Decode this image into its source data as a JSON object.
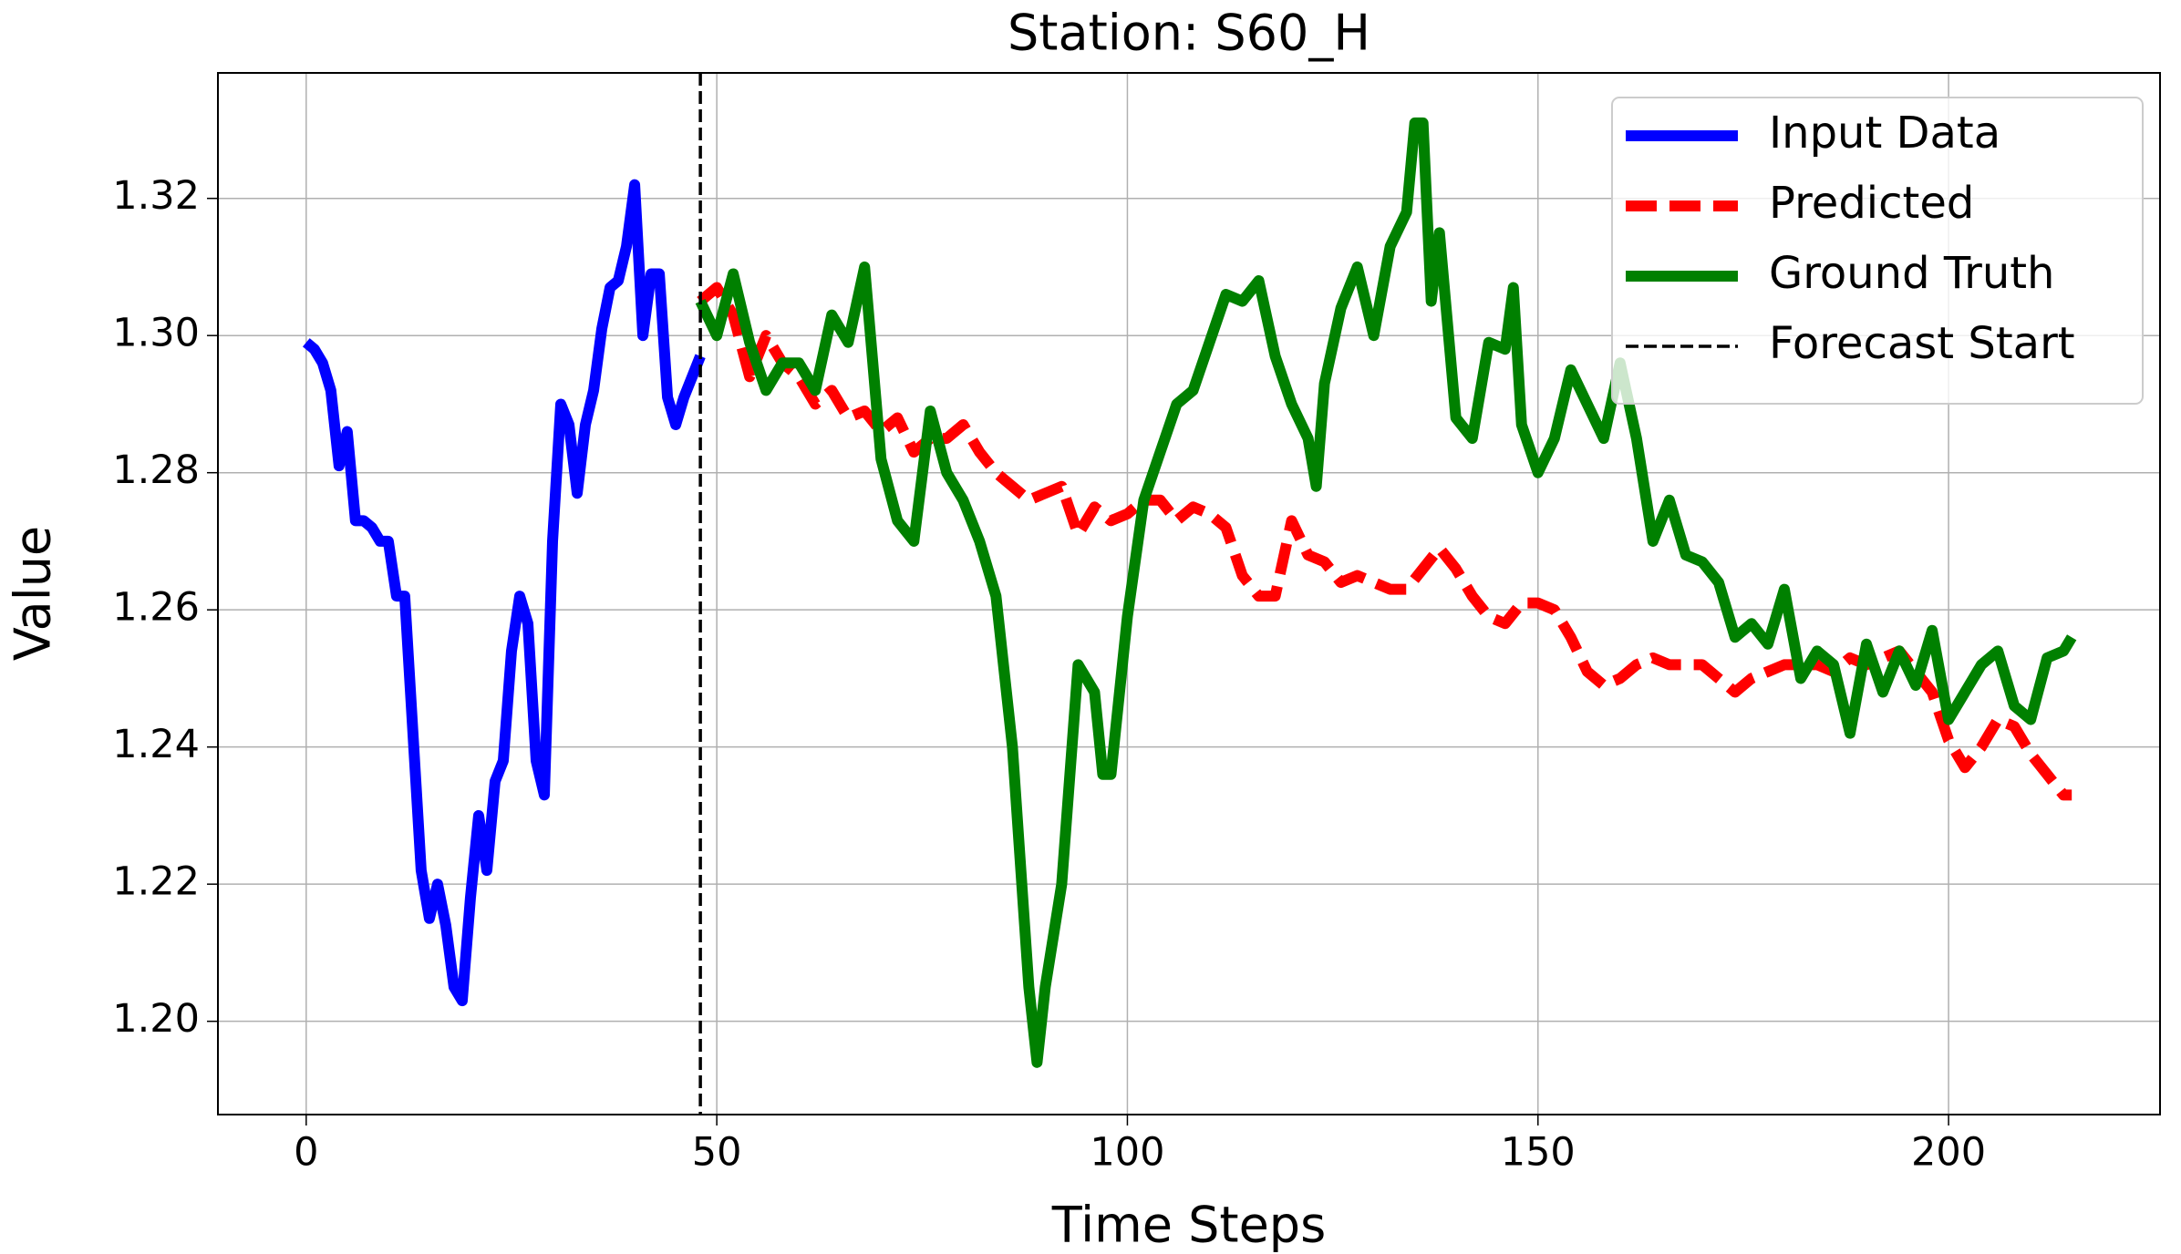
{
  "chart_data": {
    "type": "line",
    "title": "Station: S60_H",
    "xlabel": "Time Steps",
    "ylabel": "Value",
    "xlim": [
      -10.75,
      225.75
    ],
    "ylim": [
      1.1864,
      1.3383
    ],
    "xticks": [
      0,
      50,
      100,
      150,
      200
    ],
    "yticks": [
      {
        "value": 1.2,
        "label": "1.20"
      },
      1.22,
      1.24,
      1.26,
      1.28,
      {
        "value": 1.3,
        "label": "1.30"
      },
      1.32
    ],
    "grid": true,
    "legend": "upper right",
    "series": [
      {
        "name": "Input Data",
        "color": "#0000ff",
        "style": "solid",
        "x": [
          0,
          1,
          2,
          3,
          4,
          5,
          6,
          7,
          8,
          9,
          10,
          11,
          12,
          13,
          14,
          15,
          16,
          17,
          18,
          19,
          20,
          21,
          22,
          23,
          24,
          25,
          26,
          27,
          28,
          29,
          30,
          31,
          32,
          33,
          34,
          35,
          36,
          37,
          38,
          39,
          40,
          41,
          42,
          43,
          44,
          45,
          46,
          47,
          48
        ],
        "values": [
          1.299,
          1.298,
          1.296,
          1.292,
          1.281,
          1.286,
          1.273,
          1.273,
          1.272,
          1.27,
          1.27,
          1.262,
          1.262,
          1.242,
          1.222,
          1.215,
          1.22,
          1.214,
          1.205,
          1.203,
          1.218,
          1.23,
          1.222,
          1.235,
          1.238,
          1.254,
          1.262,
          1.258,
          1.238,
          1.233,
          1.27,
          1.29,
          1.287,
          1.277,
          1.287,
          1.292,
          1.301,
          1.307,
          1.308,
          1.313,
          1.322,
          1.3,
          1.309,
          1.309,
          1.291,
          1.287,
          1.291,
          1.294,
          1.297
        ]
      },
      {
        "name": "Predicted",
        "color": "#ff0000",
        "style": "dashed",
        "x": [
          48,
          50,
          52,
          54,
          56,
          58,
          60,
          62,
          64,
          66,
          68,
          70,
          72,
          74,
          76,
          78,
          80,
          82,
          84,
          86,
          88,
          90,
          92,
          94,
          96,
          98,
          100,
          102,
          104,
          106,
          108,
          110,
          112,
          114,
          116,
          118,
          120,
          122,
          124,
          126,
          128,
          130,
          132,
          134,
          136,
          138,
          140,
          142,
          144,
          146,
          148,
          150,
          152,
          154,
          156,
          158,
          160,
          162,
          164,
          166,
          168,
          170,
          172,
          174,
          176,
          178,
          180,
          182,
          184,
          186,
          188,
          190,
          192,
          194,
          196,
          198,
          200,
          202,
          204,
          206,
          208,
          210,
          212,
          214,
          215
        ],
        "values": [
          1.305,
          1.307,
          1.303,
          1.294,
          1.3,
          1.296,
          1.294,
          1.29,
          1.292,
          1.288,
          1.289,
          1.286,
          1.288,
          1.283,
          1.285,
          1.285,
          1.287,
          1.283,
          1.28,
          1.278,
          1.276,
          1.277,
          1.278,
          1.271,
          1.275,
          1.273,
          1.274,
          1.276,
          1.276,
          1.273,
          1.275,
          1.274,
          1.272,
          1.265,
          1.262,
          1.262,
          1.273,
          1.268,
          1.267,
          1.264,
          1.265,
          1.264,
          1.263,
          1.263,
          1.266,
          1.269,
          1.266,
          1.262,
          1.259,
          1.258,
          1.261,
          1.261,
          1.26,
          1.256,
          1.251,
          1.249,
          1.25,
          1.252,
          1.253,
          1.252,
          1.252,
          1.252,
          1.25,
          1.248,
          1.25,
          1.251,
          1.252,
          1.252,
          1.252,
          1.251,
          1.253,
          1.252,
          1.253,
          1.254,
          1.251,
          1.248,
          1.241,
          1.237,
          1.24,
          1.244,
          1.243,
          1.239,
          1.236,
          1.233,
          1.233
        ]
      },
      {
        "name": "Ground Truth",
        "color": "#008000",
        "style": "solid",
        "x": [
          48,
          50,
          52,
          54,
          56,
          58,
          60,
          62,
          64,
          66,
          68,
          70,
          72,
          74,
          76,
          78,
          80,
          82,
          84,
          86,
          88,
          89,
          90,
          92,
          94,
          96,
          97,
          98,
          100,
          102,
          104,
          106,
          108,
          110,
          112,
          114,
          116,
          118,
          120,
          122,
          123,
          124,
          126,
          128,
          130,
          132,
          134,
          135,
          136,
          137,
          138,
          140,
          142,
          144,
          146,
          147,
          148,
          150,
          152,
          154,
          156,
          158,
          160,
          162,
          164,
          166,
          168,
          170,
          172,
          174,
          176,
          178,
          180,
          182,
          184,
          186,
          188,
          190,
          192,
          194,
          196,
          198,
          200,
          202,
          204,
          206,
          208,
          210,
          212,
          214,
          215
        ],
        "values": [
          1.305,
          1.3,
          1.309,
          1.299,
          1.292,
          1.296,
          1.296,
          1.292,
          1.303,
          1.299,
          1.31,
          1.282,
          1.273,
          1.27,
          1.289,
          1.28,
          1.276,
          1.27,
          1.262,
          1.24,
          1.205,
          1.194,
          1.205,
          1.22,
          1.252,
          1.248,
          1.236,
          1.236,
          1.259,
          1.276,
          1.283,
          1.29,
          1.292,
          1.299,
          1.306,
          1.305,
          1.308,
          1.297,
          1.29,
          1.285,
          1.278,
          1.293,
          1.304,
          1.31,
          1.3,
          1.313,
          1.318,
          1.331,
          1.331,
          1.305,
          1.315,
          1.288,
          1.285,
          1.299,
          1.298,
          1.307,
          1.287,
          1.28,
          1.285,
          1.295,
          1.29,
          1.285,
          1.296,
          1.285,
          1.27,
          1.276,
          1.268,
          1.267,
          1.264,
          1.256,
          1.258,
          1.255,
          1.263,
          1.25,
          1.254,
          1.252,
          1.242,
          1.255,
          1.248,
          1.254,
          1.249,
          1.257,
          1.244,
          1.248,
          1.252,
          1.254,
          1.246,
          1.244,
          1.253,
          1.254,
          1.256
        ]
      }
    ],
    "vlines": [
      {
        "name": "Forecast Start",
        "x": 48,
        "color": "#000000",
        "style": "dashed"
      }
    ]
  }
}
